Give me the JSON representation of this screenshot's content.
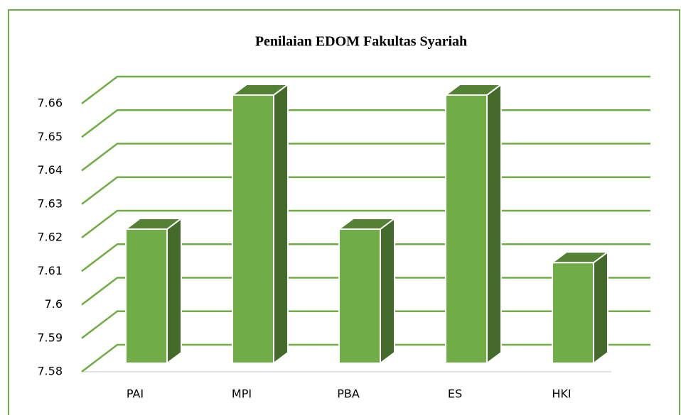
{
  "chart_data": {
    "type": "bar3d",
    "title": "Penilaian EDOM Fakultas Syariah",
    "categories": [
      "PAI",
      "MPI",
      "PBA",
      "ES",
      "HKI"
    ],
    "values": [
      7.62,
      7.66,
      7.62,
      7.66,
      7.61
    ],
    "color": "#70ad47",
    "ylim": [
      7.58,
      7.66
    ],
    "yticks": [
      7.58,
      7.59,
      7.6,
      7.61,
      7.62,
      7.63,
      7.64,
      7.65,
      7.66
    ],
    "grid": true
  }
}
